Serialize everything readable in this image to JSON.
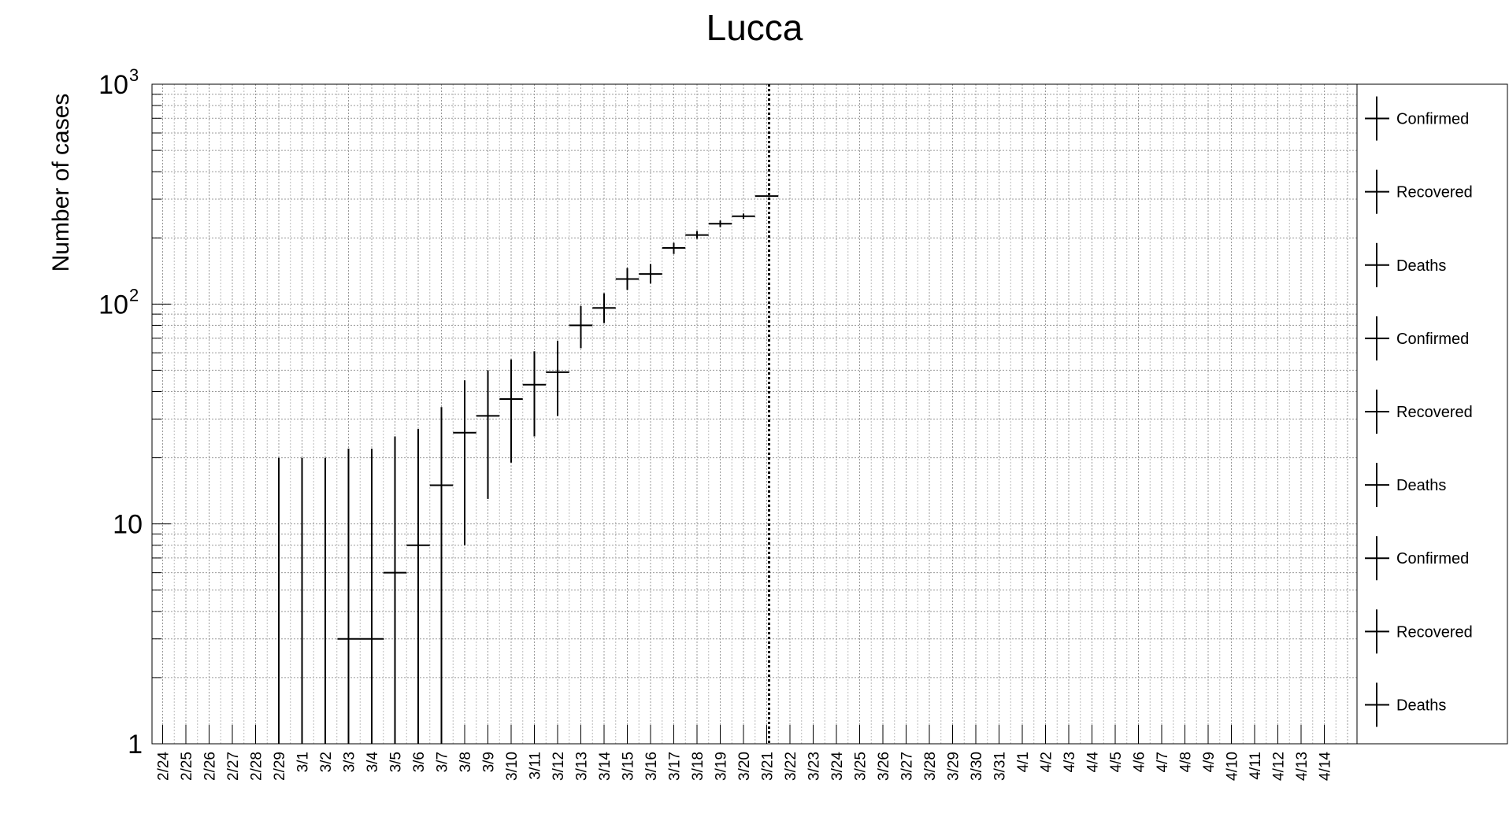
{
  "chart_data": {
    "type": "scatter",
    "title": "Lucca",
    "xlabel": "",
    "ylabel": "Number of cases",
    "y_scale": "log",
    "ylim": [
      1,
      1000
    ],
    "y_tick_labels": [
      {
        "value": 1,
        "label": "1"
      },
      {
        "value": 10,
        "label": "10"
      },
      {
        "value": 100,
        "label": "10",
        "exp": "2"
      },
      {
        "value": 1000,
        "label": "10",
        "exp": "3"
      }
    ],
    "grid": true,
    "categories": [
      "2/24",
      "2/25",
      "2/26",
      "2/27",
      "2/28",
      "2/29",
      "3/1",
      "3/2",
      "3/3",
      "3/4",
      "3/5",
      "3/6",
      "3/7",
      "3/8",
      "3/9",
      "3/10",
      "3/11",
      "3/12",
      "3/13",
      "3/14",
      "3/15",
      "3/16",
      "3/17",
      "3/18",
      "3/19",
      "3/20",
      "3/21",
      "3/22",
      "3/23",
      "3/24",
      "3/25",
      "3/26",
      "3/27",
      "3/28",
      "3/29",
      "3/30",
      "3/31",
      "4/1",
      "4/2",
      "4/3",
      "4/4",
      "4/5",
      "4/6",
      "4/7",
      "4/8",
      "4/9",
      "4/10",
      "4/11",
      "4/12",
      "4/13",
      "4/14"
    ],
    "vertical_marker": "3/21",
    "series": [
      {
        "name": "Confirmed",
        "points": [
          {
            "x": "2/29",
            "low": 1,
            "high": 20
          },
          {
            "x": "3/1",
            "low": 1,
            "high": 20
          },
          {
            "x": "3/2",
            "low": 1,
            "high": 20
          },
          {
            "x": "3/3",
            "value": 3,
            "low": 1,
            "high": 22,
            "x_from": "3/3",
            "x_to": "3/4"
          },
          {
            "x": "3/4",
            "value": 3,
            "low": 1,
            "high": 22,
            "x_from": "3/4",
            "x_to": "3/5"
          },
          {
            "x": "3/5",
            "value": 6,
            "low": 1,
            "high": 25
          },
          {
            "x": "3/6",
            "value": 8,
            "low": 1,
            "high": 27
          },
          {
            "x": "3/7",
            "value": 15,
            "low": 1,
            "high": 34
          },
          {
            "x": "3/8",
            "value": 26,
            "low": 8,
            "high": 45
          },
          {
            "x": "3/9",
            "value": 31,
            "low": 13,
            "high": 50
          },
          {
            "x": "3/10",
            "value": 37,
            "low": 19,
            "high": 56
          },
          {
            "x": "3/11",
            "value": 43,
            "low": 25,
            "high": 61
          },
          {
            "x": "3/12",
            "value": 49,
            "low": 31,
            "high": 68
          },
          {
            "x": "3/13",
            "value": 80,
            "low": 63,
            "high": 98
          },
          {
            "x": "3/14",
            "value": 96,
            "low": 82,
            "high": 112
          },
          {
            "x": "3/15",
            "value": 130,
            "low": 116,
            "high": 146
          },
          {
            "x": "3/16",
            "value": 137,
            "low": 124,
            "high": 152
          },
          {
            "x": "3/17",
            "value": 180,
            "low": 169,
            "high": 190
          },
          {
            "x": "3/18",
            "value": 206,
            "low": 198,
            "high": 215
          },
          {
            "x": "3/19",
            "value": 232,
            "low": 224,
            "high": 240
          },
          {
            "x": "3/20",
            "value": 251,
            "low": 244,
            "high": 258
          },
          {
            "x": "3/21",
            "value": 310,
            "low": 310,
            "high": 310
          }
        ]
      }
    ],
    "legend": {
      "placement": "right",
      "entries": [
        "Confirmed",
        "Recovered",
        "Deaths",
        "Confirmed",
        "Recovered",
        "Deaths",
        "Confirmed",
        "Recovered",
        "Deaths"
      ]
    }
  }
}
